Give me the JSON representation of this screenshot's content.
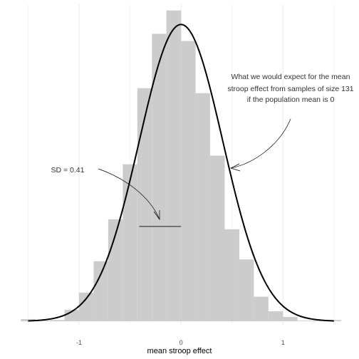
{
  "chart_data": {
    "type": "bar",
    "title": "",
    "xlabel": "mean stroop effect",
    "ylabel": "",
    "xlim": [
      -1.58,
      1.55
    ],
    "ylim": [
      0,
      1.02
    ],
    "x_ticks": [
      -1,
      0,
      1
    ],
    "x_tick_labels": [
      "-1",
      "0",
      "1"
    ],
    "grid": true,
    "histogram": {
      "bin_width": 0.1429,
      "bins": [
        {
          "x0": -1.5714,
          "x1": -1.4286,
          "count": 0.007
        },
        {
          "x0": -1.4286,
          "x1": -1.2857,
          "count": 0.002
        },
        {
          "x0": -1.2857,
          "x1": -1.1429,
          "count": 0.004
        },
        {
          "x0": -1.1429,
          "x1": -1.0,
          "count": 0.037
        },
        {
          "x0": -1.0,
          "x1": -0.8571,
          "count": 0.092
        },
        {
          "x0": -0.8571,
          "x1": -0.7143,
          "count": 0.193
        },
        {
          "x0": -0.7143,
          "x1": -0.5714,
          "count": 0.328
        },
        {
          "x0": -0.5714,
          "x1": -0.4286,
          "count": 0.505
        },
        {
          "x0": -0.4286,
          "x1": -0.2857,
          "count": 0.75
        },
        {
          "x0": -0.2857,
          "x1": -0.1429,
          "count": 0.925
        },
        {
          "x0": -0.1429,
          "x1": 0.0,
          "count": 1.0
        },
        {
          "x0": 0.0,
          "x1": 0.1429,
          "count": 0.902
        },
        {
          "x0": 0.1429,
          "x1": 0.2857,
          "count": 0.734
        },
        {
          "x0": 0.2857,
          "x1": 0.4286,
          "count": 0.533
        },
        {
          "x0": 0.4286,
          "x1": 0.5714,
          "count": 0.296
        },
        {
          "x0": 0.5714,
          "x1": 0.7143,
          "count": 0.199
        },
        {
          "x0": 0.7143,
          "x1": 0.8571,
          "count": 0.079
        },
        {
          "x0": 0.8571,
          "x1": 1.0,
          "count": 0.032
        },
        {
          "x0": 1.0,
          "x1": 1.1429,
          "count": 0.014
        },
        {
          "x0": 1.1429,
          "x1": 1.2857,
          "count": 0.002
        },
        {
          "x0": 1.2857,
          "x1": 1.4286,
          "count": 0.002
        },
        {
          "x0": 1.4286,
          "x1": 1.5714,
          "count": 0.004
        }
      ]
    },
    "curve": {
      "mean": 0,
      "sd": 0.41,
      "peak": 0.955
    },
    "sd_segment": {
      "x0": -0.41,
      "x1": 0,
      "y": 0.305
    },
    "annotations": [
      {
        "name": "expectation-annotation",
        "lines": [
          "What we would expect for the mean",
          "stroop effect from samples of size 131",
          "if the population mean is 0"
        ]
      },
      {
        "name": "sd-annotation",
        "lines": [
          "SD = 0.41"
        ]
      }
    ],
    "colors": {
      "bars": "#cccccc",
      "curve": "#000000",
      "grid": "#ebebeb",
      "arrow": "#000000",
      "background": "#ffffff"
    }
  }
}
